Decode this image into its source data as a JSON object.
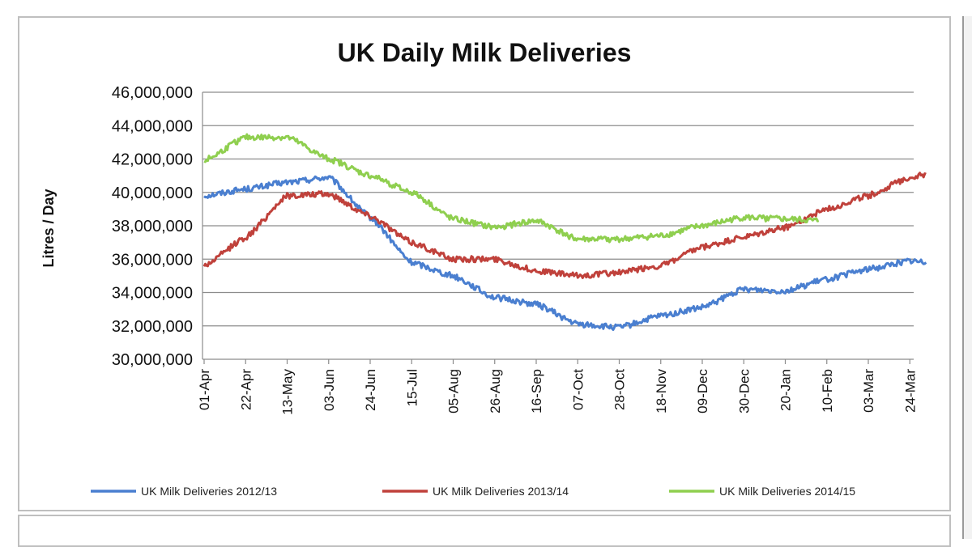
{
  "chart_data": {
    "type": "line",
    "title": "UK Daily Milk Deliveries",
    "xlabel": "",
    "ylabel": "Litres / Day",
    "ylim": [
      30000000,
      46000000
    ],
    "y_ticks": [
      "30,000,000",
      "32,000,000",
      "34,000,000",
      "36,000,000",
      "38,000,000",
      "40,000,000",
      "42,000,000",
      "44,000,000",
      "46,000,000"
    ],
    "x_ticks": [
      "01-Apr",
      "22-Apr",
      "13-May",
      "03-Jun",
      "24-Jun",
      "15-Jul",
      "05-Aug",
      "26-Aug",
      "16-Sep",
      "07-Oct",
      "28-Oct",
      "18-Nov",
      "09-Dec",
      "30-Dec",
      "20-Jan",
      "10-Feb",
      "03-Mar",
      "24-Mar"
    ],
    "grid": true,
    "legend_position": "bottom",
    "series": [
      {
        "name": "UK Milk Deliveries 2012/13",
        "color": "#4a7fd0",
        "x": [
          "01-Apr",
          "22-Apr",
          "13-May",
          "03-Jun",
          "24-Jun",
          "15-Jul",
          "05-Aug",
          "26-Aug",
          "16-Sep",
          "07-Oct",
          "28-Oct",
          "18-Nov",
          "09-Dec",
          "30-Dec",
          "20-Jan",
          "10-Feb",
          "03-Mar",
          "24-Mar",
          "31-Mar"
        ],
        "values": [
          39800000,
          40200000,
          40600000,
          40900000,
          38500000,
          35800000,
          35000000,
          33700000,
          33300000,
          32100000,
          31900000,
          32600000,
          33100000,
          34200000,
          34100000,
          34800000,
          35400000,
          35900000,
          35800000
        ]
      },
      {
        "name": "UK Milk Deliveries 2013/14",
        "color": "#c0413b",
        "x": [
          "01-Apr",
          "22-Apr",
          "13-May",
          "03-Jun",
          "24-Jun",
          "15-Jul",
          "05-Aug",
          "26-Aug",
          "16-Sep",
          "07-Oct",
          "28-Oct",
          "18-Nov",
          "09-Dec",
          "30-Dec",
          "20-Jan",
          "10-Feb",
          "03-Mar",
          "24-Mar",
          "31-Mar"
        ],
        "values": [
          35600000,
          37300000,
          39800000,
          39900000,
          38600000,
          37000000,
          36000000,
          36000000,
          35300000,
          35000000,
          35200000,
          35600000,
          36700000,
          37300000,
          37900000,
          39000000,
          39800000,
          40900000,
          41100000
        ]
      },
      {
        "name": "UK Milk Deliveries 2014/15",
        "color": "#8fcf4f",
        "x": [
          "01-Apr",
          "22-Apr",
          "13-May",
          "03-Jun",
          "24-Jun",
          "15-Jul",
          "05-Aug",
          "26-Aug",
          "16-Sep",
          "07-Oct",
          "28-Oct",
          "18-Nov",
          "09-Dec",
          "30-Dec",
          "20-Jan",
          "06-Feb"
        ],
        "values": [
          41900000,
          43300000,
          43300000,
          42000000,
          41000000,
          40000000,
          38400000,
          37900000,
          38300000,
          37200000,
          37200000,
          37400000,
          38000000,
          38500000,
          38400000,
          38300000
        ]
      }
    ]
  }
}
